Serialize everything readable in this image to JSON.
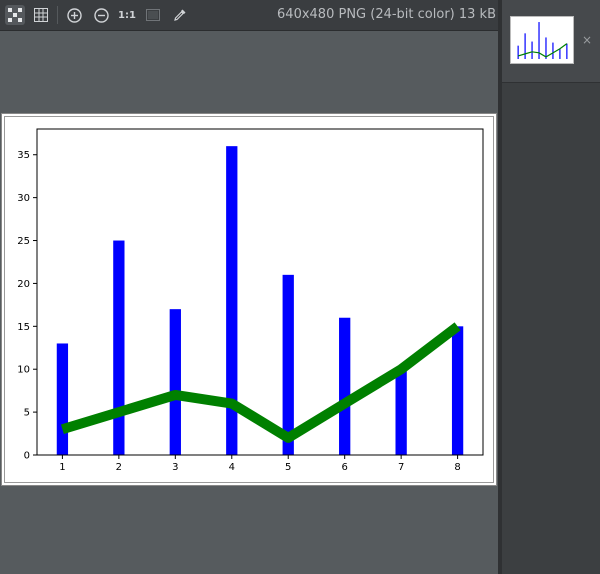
{
  "toolbar": {
    "buttons": [
      {
        "name": "fit-to-window-icon",
        "active": true
      },
      {
        "name": "grid-toggle-icon",
        "active": false
      },
      {
        "name": "zoom-in-icon",
        "active": false
      },
      {
        "name": "zoom-out-icon",
        "active": false
      },
      {
        "name": "one-to-one-zoom",
        "label": "1:1"
      },
      {
        "name": "background-toggle-icon",
        "active": false
      },
      {
        "name": "color-picker-icon",
        "active": false
      }
    ],
    "image_info": "640x480 PNG (24-bit color) 13 kB"
  },
  "thumbnail": {
    "close_symbol": "×"
  },
  "colors": {
    "bars": "#0000ff",
    "line": "#008000"
  },
  "chart_data": {
    "type": "bar",
    "title": "",
    "xlabel": "",
    "ylabel": "",
    "categories": [
      1,
      2,
      3,
      4,
      5,
      6,
      7,
      8
    ],
    "xticks": [
      "1",
      "2",
      "3",
      "4",
      "5",
      "6",
      "7",
      "8"
    ],
    "yticks": [
      "0",
      "5",
      "10",
      "15",
      "20",
      "25",
      "30",
      "35"
    ],
    "ylim": [
      0,
      38
    ],
    "grid": false,
    "series": [
      {
        "type": "bar",
        "values": [
          13,
          25,
          17,
          36,
          21,
          16,
          10,
          15
        ]
      },
      {
        "type": "line",
        "values": [
          3,
          5,
          7,
          6,
          2,
          6,
          10,
          15
        ]
      }
    ]
  }
}
